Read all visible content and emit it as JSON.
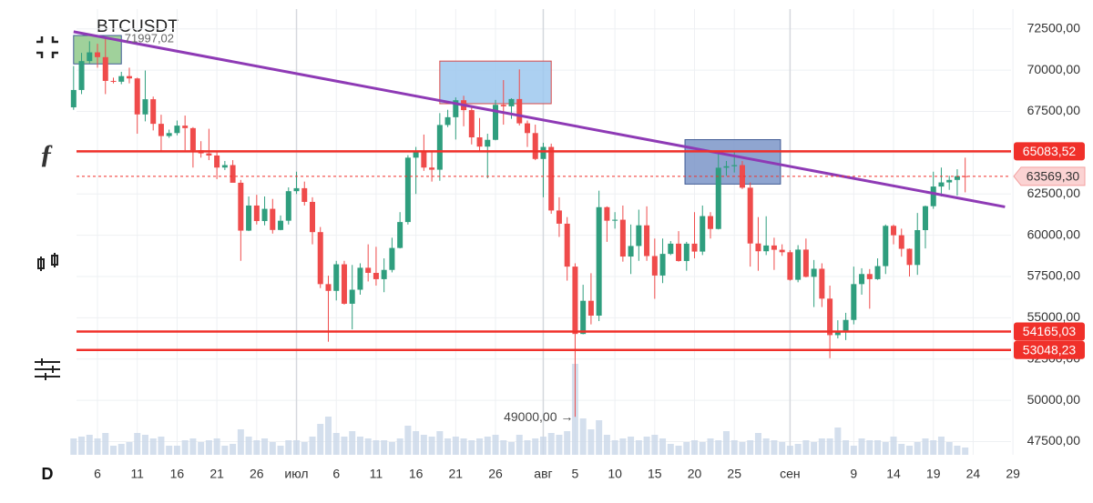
{
  "chart_data": {
    "type": "candlestick",
    "title": "BTCUSDT",
    "interval": "D",
    "categories": [
      null,
      null,
      null,
      "6",
      null,
      null,
      null,
      null,
      "11",
      null,
      null,
      null,
      null,
      "16",
      null,
      null,
      null,
      null,
      "21",
      null,
      null,
      null,
      null,
      "26",
      null,
      null,
      null,
      null,
      "июл",
      null,
      null,
      null,
      null,
      "6",
      null,
      null,
      null,
      null,
      "11",
      null,
      null,
      null,
      null,
      "16",
      null,
      null,
      null,
      null,
      "21",
      null,
      null,
      null,
      null,
      "26",
      null,
      null,
      null,
      null,
      null,
      "авг",
      null,
      null,
      null,
      "5",
      null,
      null,
      null,
      null,
      "10",
      null,
      null,
      null,
      null,
      "15",
      null,
      null,
      null,
      null,
      "20",
      null,
      null,
      null,
      null,
      "25",
      null,
      null,
      null,
      null,
      null,
      null,
      "сен",
      null,
      null,
      null,
      null,
      null,
      null,
      null,
      "9",
      null,
      null,
      null,
      null,
      "14",
      null,
      null,
      null,
      null,
      "19",
      null,
      null,
      null,
      null,
      "24",
      null,
      null,
      null,
      null,
      "29"
    ],
    "ohlc": [
      [
        67750,
        70250,
        67600,
        68800
      ],
      [
        68800,
        71050,
        68550,
        70550
      ],
      [
        70550,
        71750,
        70400,
        71080
      ],
      [
        71080,
        71600,
        70150,
        70790
      ],
      [
        70790,
        71980,
        68550,
        69350
      ],
      [
        69350,
        69550,
        69200,
        69300
      ],
      [
        69300,
        69900,
        69150,
        69640
      ],
      [
        69640,
        70150,
        69200,
        69500
      ],
      [
        69500,
        69550,
        66150,
        67320
      ],
      [
        67320,
        69980,
        66900,
        68240
      ],
      [
        68240,
        68400,
        66350,
        66750
      ],
      [
        66750,
        67300,
        65050,
        66010
      ],
      [
        66010,
        66400,
        65900,
        66190
      ],
      [
        66190,
        66950,
        66050,
        66640
      ],
      [
        66640,
        67250,
        65150,
        66490
      ],
      [
        66490,
        66550,
        64100,
        65150
      ],
      [
        65150,
        65700,
        64700,
        64960
      ],
      [
        64960,
        66450,
        64550,
        64830
      ],
      [
        64830,
        65050,
        63400,
        64100
      ],
      [
        64100,
        64500,
        63950,
        64250
      ],
      [
        64250,
        64550,
        63200,
        63180
      ],
      [
        63180,
        63350,
        58450,
        60280
      ],
      [
        60280,
        62350,
        60250,
        61800
      ],
      [
        61800,
        62450,
        60650,
        60860
      ],
      [
        60860,
        62350,
        60600,
        61600
      ],
      [
        61600,
        62200,
        60100,
        60320
      ],
      [
        60320,
        61200,
        60300,
        60880
      ],
      [
        60880,
        62900,
        60650,
        62670
      ],
      [
        62670,
        63850,
        62500,
        62850
      ],
      [
        62850,
        63250,
        61800,
        62020
      ],
      [
        62020,
        62300,
        59450,
        60190
      ],
      [
        60190,
        60500,
        56800,
        57040
      ],
      [
        57040,
        57550,
        53550,
        56630
      ],
      [
        56630,
        58450,
        56050,
        58240
      ],
      [
        58240,
        58450,
        55800,
        55850
      ],
      [
        55850,
        58200,
        54300,
        56700
      ],
      [
        56700,
        58300,
        56400,
        58030
      ],
      [
        58030,
        59450,
        57200,
        57720
      ],
      [
        57720,
        59300,
        56950,
        57340
      ],
      [
        57340,
        58600,
        56550,
        57900
      ],
      [
        57900,
        59850,
        57750,
        59230
      ],
      [
        59230,
        61400,
        59200,
        60800
      ],
      [
        60800,
        64850,
        60650,
        64700
      ],
      [
        64700,
        65350,
        62500,
        65040
      ],
      [
        65040,
        66100,
        63900,
        64100
      ],
      [
        64100,
        65100,
        63250,
        63970
      ],
      [
        63970,
        67400,
        63300,
        66680
      ],
      [
        66680,
        67600,
        66550,
        67150
      ],
      [
        67150,
        68350,
        65800,
        68180
      ],
      [
        68180,
        68450,
        66600,
        67580
      ],
      [
        67580,
        67800,
        65500,
        65930
      ],
      [
        65930,
        67100,
        65100,
        65370
      ],
      [
        65370,
        66150,
        63450,
        65780
      ],
      [
        65780,
        68200,
        65750,
        67900
      ],
      [
        67900,
        69400,
        66700,
        67810
      ],
      [
        67810,
        68300,
        67050,
        68250
      ],
      [
        68250,
        70050,
        66650,
        66780
      ],
      [
        66780,
        66950,
        65350,
        66190
      ],
      [
        66190,
        66700,
        64550,
        64620
      ],
      [
        64620,
        65600,
        62300,
        65350
      ],
      [
        65350,
        65550,
        61300,
        61500
      ],
      [
        61500,
        62300,
        59900,
        60700
      ],
      [
        60700,
        61100,
        57250,
        58100
      ],
      [
        58100,
        58300,
        49000,
        54020
      ],
      [
        54020,
        57000,
        54000,
        56030
      ],
      [
        56030,
        57700,
        54600,
        55130
      ],
      [
        55130,
        62700,
        54800,
        61700
      ],
      [
        61700,
        61750,
        59600,
        60880
      ],
      [
        60880,
        61400,
        60400,
        60940
      ],
      [
        60940,
        61800,
        58400,
        58710
      ],
      [
        58710,
        60650,
        57650,
        59350
      ],
      [
        59350,
        61550,
        58450,
        60600
      ],
      [
        60600,
        61750,
        58450,
        58740
      ],
      [
        58740,
        59800,
        56150,
        57560
      ],
      [
        57560,
        59800,
        57100,
        58870
      ],
      [
        58870,
        59650,
        58800,
        59490
      ],
      [
        59490,
        60250,
        58400,
        58440
      ],
      [
        58440,
        59600,
        57850,
        59490
      ],
      [
        59490,
        61400,
        58600,
        59010
      ],
      [
        59010,
        61800,
        58800,
        61160
      ],
      [
        61160,
        61400,
        59800,
        60380
      ],
      [
        60380,
        64950,
        60350,
        64090
      ],
      [
        64090,
        64500,
        63600,
        64180
      ],
      [
        64180,
        65050,
        63800,
        64250
      ],
      [
        64250,
        64500,
        62800,
        62880
      ],
      [
        62880,
        63200,
        58100,
        59500
      ],
      [
        59500,
        61100,
        57850,
        59030
      ],
      [
        59030,
        61150,
        58800,
        59380
      ],
      [
        59380,
        59850,
        57900,
        59120
      ],
      [
        59120,
        59450,
        58750,
        58970
      ],
      [
        58970,
        59100,
        57250,
        57300
      ],
      [
        57300,
        59400,
        57150,
        59130
      ],
      [
        59130,
        59800,
        57450,
        57480
      ],
      [
        57480,
        58500,
        55650,
        57970
      ],
      [
        57970,
        58300,
        55650,
        56160
      ],
      [
        56160,
        56950,
        52550,
        53950
      ],
      [
        53950,
        54850,
        53750,
        54160
      ],
      [
        54160,
        55300,
        53650,
        54870
      ],
      [
        54870,
        58100,
        54600,
        57040
      ],
      [
        57040,
        58000,
        56400,
        57650
      ],
      [
        57650,
        57950,
        55550,
        57340
      ],
      [
        57340,
        58600,
        57300,
        58130
      ],
      [
        58130,
        60650,
        57650,
        60570
      ],
      [
        60570,
        60650,
        59450,
        60000
      ],
      [
        60000,
        60400,
        58700,
        59180
      ],
      [
        59180,
        59200,
        57500,
        58200
      ],
      [
        58200,
        61350,
        57600,
        60310
      ],
      [
        60310,
        61800,
        59200,
        61760
      ],
      [
        61760,
        63850,
        61600,
        62950
      ],
      [
        62950,
        64100,
        62350,
        63200
      ],
      [
        63200,
        63600,
        62750,
        63350
      ],
      [
        63350,
        64000,
        62400,
        63580
      ],
      [
        63580,
        64700,
        62600,
        63570
      ],
      null,
      null,
      null,
      null,
      null,
      null
    ],
    "volume": [
      18,
      20,
      22,
      18,
      24,
      10,
      12,
      14,
      24,
      22,
      18,
      20,
      10,
      10,
      16,
      18,
      14,
      16,
      18,
      10,
      12,
      28,
      20,
      16,
      18,
      14,
      10,
      16,
      16,
      14,
      20,
      34,
      42,
      24,
      20,
      26,
      20,
      18,
      16,
      16,
      14,
      18,
      32,
      26,
      22,
      20,
      26,
      18,
      20,
      18,
      16,
      18,
      20,
      22,
      16,
      14,
      22,
      16,
      18,
      20,
      24,
      22,
      26,
      100,
      40,
      28,
      38,
      22,
      16,
      18,
      20,
      16,
      20,
      22,
      18,
      12,
      10,
      14,
      16,
      14,
      18,
      16,
      26,
      16,
      14,
      16,
      24,
      18,
      16,
      14,
      10,
      12,
      16,
      14,
      18,
      18,
      30,
      16,
      10,
      18,
      16,
      16,
      14,
      20,
      12,
      10,
      14,
      18,
      16,
      20,
      14,
      10,
      8,
      null,
      null,
      null,
      null,
      null,
      null
    ],
    "volume_lim": [
      0,
      100
    ],
    "up_color": "#2f9e7e",
    "down_color": "#ef4b4b",
    "volume_color": "#c9d7e8",
    "ylim": [
      46700,
      73700
    ],
    "yticks": [
      {
        "value": 47500,
        "label": "47500,00"
      },
      {
        "value": 50000,
        "label": "50000,00"
      },
      {
        "value": 52500,
        "label": "52500,00"
      },
      {
        "value": 55000,
        "label": "55000,00"
      },
      {
        "value": 57500,
        "label": "57500,00"
      },
      {
        "value": 60000,
        "label": "60000,00"
      },
      {
        "value": 62500,
        "label": "62500,00"
      },
      {
        "value": 65000,
        "label": "65000,00"
      },
      {
        "value": 67500,
        "label": "67500,00"
      },
      {
        "value": 70000,
        "label": "70000,00"
      },
      {
        "value": 72500,
        "label": "72500,00"
      }
    ],
    "grid": true,
    "hlines": [
      {
        "value": 65083.52,
        "label": "65083,52"
      },
      {
        "value": 54165.03,
        "label": "54165,03"
      },
      {
        "value": 53048.23,
        "label": "53048,23"
      }
    ],
    "hline_color": "#f0302a",
    "last_price": {
      "value": 63569.3,
      "label": "63569,30"
    },
    "trendline": {
      "x": [
        0,
        117
      ],
      "y": [
        72330,
        61720
      ],
      "color": "#8e3ab5"
    },
    "boxes": [
      {
        "x": [
          0,
          6
        ],
        "y": [
          72100,
          70380
        ],
        "color": "#8fc98a"
      },
      {
        "x": [
          46,
          60
        ],
        "y": [
          70550,
          67970
        ],
        "color": "#9dc8ef"
      },
      {
        "x": [
          76.8,
          88.8
        ],
        "y": [
          65790,
          63100
        ],
        "color": "#7b95c8"
      }
    ],
    "annotations": [
      {
        "x": 0,
        "value": 71997.02,
        "label": "71997,02"
      },
      {
        "x": 63,
        "value": 49000,
        "label": "49000,00 →"
      }
    ]
  }
}
